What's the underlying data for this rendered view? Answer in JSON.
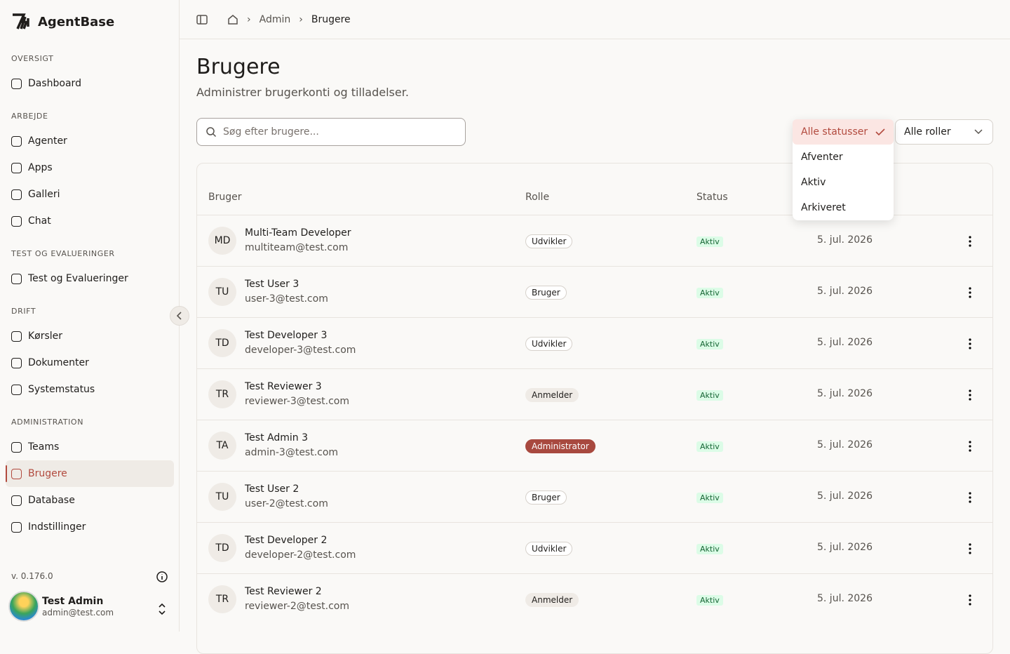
{
  "sidebar": {
    "brand": "AgentBase",
    "sections": [
      {
        "title": "OVERSIGT",
        "items": [
          "Dashboard"
        ]
      },
      {
        "title": "ARBEJDE",
        "items": [
          "Agenter",
          "Apps",
          "Galleri",
          "Chat"
        ]
      },
      {
        "title": "TEST OG EVALUERINGER",
        "items": [
          "Test og Evalueringer"
        ]
      },
      {
        "title": "DRIFT",
        "items": [
          "Kørsler",
          "Dokumenter",
          "Systemstatus"
        ]
      },
      {
        "title": "ADMINISTRATION",
        "items": [
          "Teams",
          "Brugere",
          "Database",
          "Indstillinger"
        ]
      }
    ],
    "active": "Brugere",
    "version": "v. 0.176.0",
    "user": {
      "name": "Test Admin",
      "email": "admin@test.com"
    }
  },
  "breadcrumb": [
    "Admin",
    "Brugere"
  ],
  "header": {
    "title": "Brugere",
    "subtitle": "Administrer brugerkonti og tilladelser."
  },
  "search_placeholder": "Søg efter brugere...",
  "status_filter": {
    "options": [
      "Alle statusser",
      "Afventer",
      "Aktiv",
      "Arkiveret"
    ],
    "selected": "Alle statusser"
  },
  "role_filter": "Alle roller",
  "table": {
    "columns": [
      "Bruger",
      "Rolle",
      "Status"
    ],
    "rows": [
      {
        "initials": "MD",
        "name": "Multi-Team Developer",
        "email": "multiteam@test.com",
        "role": "Udvikler",
        "status": "Aktiv",
        "date": "5. jul. 2026"
      },
      {
        "initials": "TU",
        "name": "Test User 3",
        "email": "user-3@test.com",
        "role": "Bruger",
        "status": "Aktiv",
        "date": "5. jul. 2026"
      },
      {
        "initials": "TD",
        "name": "Test Developer 3",
        "email": "developer-3@test.com",
        "role": "Udvikler",
        "status": "Aktiv",
        "date": "5. jul. 2026"
      },
      {
        "initials": "TR",
        "name": "Test Reviewer 3",
        "email": "reviewer-3@test.com",
        "role": "Anmelder",
        "status": "Aktiv",
        "date": "5. jul. 2026"
      },
      {
        "initials": "TA",
        "name": "Test Admin 3",
        "email": "admin-3@test.com",
        "role": "Administrator",
        "status": "Aktiv",
        "date": "5. jul. 2026"
      },
      {
        "initials": "TU",
        "name": "Test User 2",
        "email": "user-2@test.com",
        "role": "Bruger",
        "status": "Aktiv",
        "date": "5. jul. 2026"
      },
      {
        "initials": "TD",
        "name": "Test Developer 2",
        "email": "developer-2@test.com",
        "role": "Udvikler",
        "status": "Aktiv",
        "date": "5. jul. 2026"
      },
      {
        "initials": "TR",
        "name": "Test Reviewer 2",
        "email": "reviewer-2@test.com",
        "role": "Anmelder",
        "status": "Aktiv",
        "date": "5. jul. 2026"
      }
    ]
  }
}
